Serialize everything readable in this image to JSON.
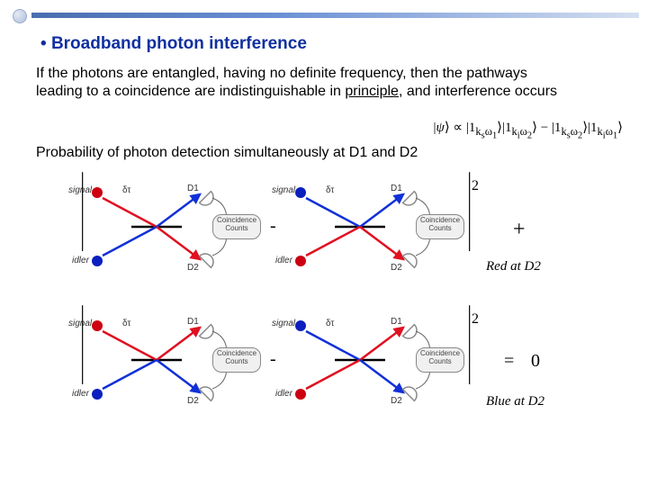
{
  "heading_bullet": "•",
  "heading": "Broadband photon interference",
  "para1_line1": "If the photons are entangled, having no definite frequency, then the pathways",
  "para1_line2a": "leading to a coincidence are indistinguishable in ",
  "para1_underlined": "principle",
  "para1_line2b": ", and interference occurs",
  "formula": "|ψ⟩ ∝ |1_{k_s ω_1}⟩|1_{k_i ω_2}⟩ − |1_{k_s ω_2}⟩|1_{k_i ω_1}⟩",
  "prob_line": "Probability of photon detection simultaneously at D1 and D2",
  "labels": {
    "signal": "signal",
    "idler": "idler",
    "d1": "D1",
    "d2": "D2",
    "delta": "δτ",
    "cc": "Coincidence Counts"
  },
  "row1": {
    "minus": "-",
    "plus": "+",
    "exp": "2",
    "tag": "Red at D2"
  },
  "row2": {
    "minus": "-",
    "eq": "=",
    "zero": "0",
    "exp": "2",
    "tag": "Blue at D2"
  },
  "colors": {
    "red": "#e01020",
    "blue": "#1030d8",
    "redNode": "#cc0011",
    "blueNode": "#0b1fbf",
    "det": "#888888",
    "bs": "#000000"
  },
  "diagrams": {
    "row1": [
      {
        "topLeft": "red",
        "botLeft": "blue",
        "d1": "blue",
        "d2": "red"
      },
      {
        "topLeft": "blue",
        "botLeft": "red",
        "d1": "blue",
        "d2": "red"
      }
    ],
    "row2": [
      {
        "topLeft": "red",
        "botLeft": "blue",
        "d1": "red",
        "d2": "blue"
      },
      {
        "topLeft": "blue",
        "botLeft": "red",
        "d1": "red",
        "d2": "blue"
      }
    ]
  }
}
